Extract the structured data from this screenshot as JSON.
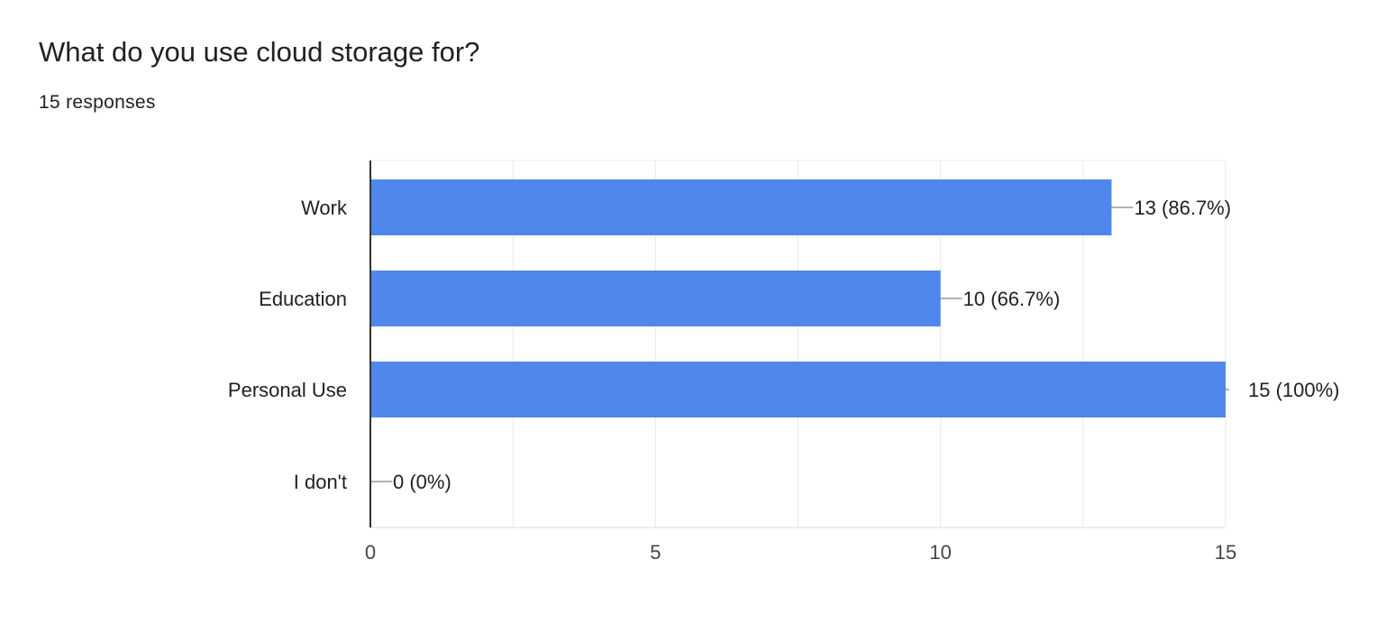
{
  "question": {
    "title": "What do you use cloud storage for?",
    "responses": "15 responses"
  },
  "colors": {
    "bar": "#5087EC",
    "grid": "#E8E8E8",
    "axis": "#333333",
    "leader": "#999999"
  },
  "chart_data": {
    "type": "bar",
    "orientation": "horizontal",
    "title": "What do you use cloud storage for?",
    "categories": [
      "Work",
      "Education",
      "Personal Use",
      "I don't"
    ],
    "values": [
      13,
      10,
      15,
      0
    ],
    "value_labels": [
      "13 (86.7%)",
      "10 (66.7%)",
      "15 (100%)",
      "0 (0%)"
    ],
    "xlim": [
      0,
      15
    ],
    "xticks": [
      0,
      5,
      10,
      15
    ],
    "grid": true,
    "legend": "none"
  }
}
